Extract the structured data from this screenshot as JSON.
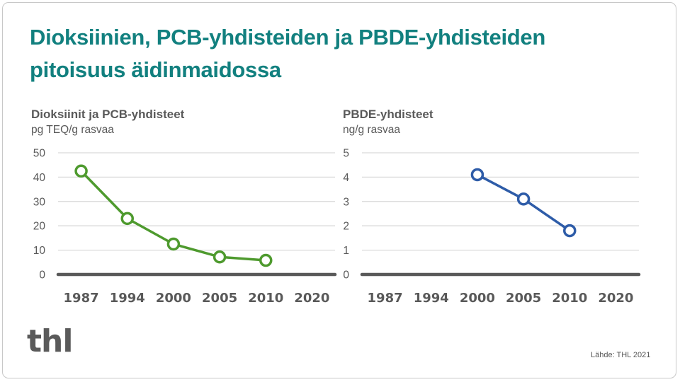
{
  "title": "Dioksiinien, PCB-yhdisteiden  ja PBDE-yhdisteiden pitoisuus äidinmaidossa",
  "title_line1": "Dioksiinien, PCB-yhdisteiden  ja PBDE-yhdisteiden",
  "title_line2": "pitoisuus äidinmaidossa",
  "colors": {
    "title": "#12807f",
    "green_series": "#4e9a2e",
    "blue_series": "#2e5ca8",
    "text_gray": "#595959",
    "gridline": "#d9d9d9",
    "axis": "#595959"
  },
  "left_chart": {
    "heading": "Dioksiinit ja PCB-yhdisteet",
    "unit": "pg TEQ/g rasvaa"
  },
  "right_chart": {
    "heading": "PBDE-yhdisteet",
    "unit": "ng/g rasvaa"
  },
  "logo_text": "thl",
  "source": "Lähde: THL 2021",
  "chart_data": [
    {
      "type": "line",
      "title": "Dioksiinit ja PCB-yhdisteet",
      "ylabel": "pg TEQ/g rasvaa",
      "xlabel": "",
      "categories": [
        "1987",
        "1994",
        "2000",
        "2005",
        "2010",
        "2020"
      ],
      "series": [
        {
          "name": "Dioksiinit ja PCB-yhdisteet",
          "color": "#4e9a2e",
          "values": [
            42.5,
            23,
            12.5,
            7.2,
            5.8,
            null
          ]
        }
      ],
      "yticks": [
        0,
        10,
        20,
        30,
        40,
        50
      ],
      "ylim": [
        0,
        50
      ],
      "grid": true,
      "legend": "none",
      "markers": "hollow-circle"
    },
    {
      "type": "line",
      "title": "PBDE-yhdisteet",
      "ylabel": "ng/g rasvaa",
      "xlabel": "",
      "categories": [
        "1987",
        "1994",
        "2000",
        "2005",
        "2010",
        "2020"
      ],
      "series": [
        {
          "name": "PBDE-yhdisteet",
          "color": "#2e5ca8",
          "values": [
            null,
            null,
            4.1,
            3.1,
            1.8,
            null
          ]
        }
      ],
      "yticks": [
        0,
        1,
        2,
        3,
        4,
        5
      ],
      "ylim": [
        0,
        5
      ],
      "grid": true,
      "legend": "none",
      "markers": "hollow-circle"
    }
  ]
}
